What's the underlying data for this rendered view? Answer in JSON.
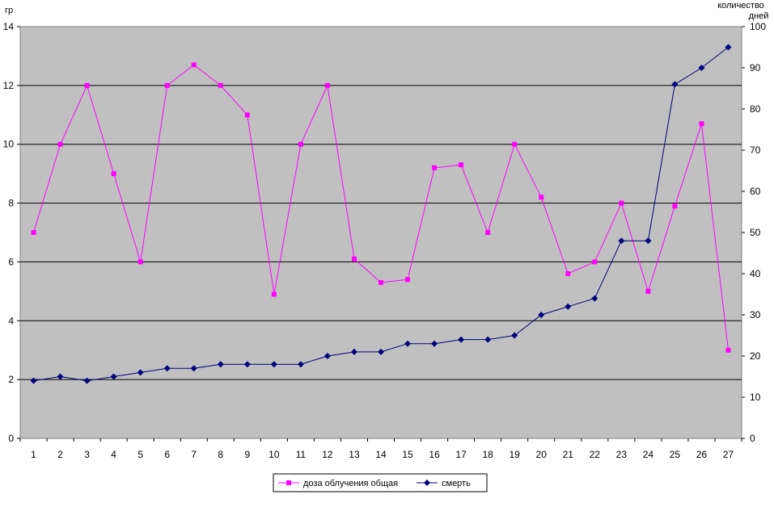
{
  "chart_data": {
    "type": "line",
    "title": "",
    "x": [
      1,
      2,
      3,
      4,
      5,
      6,
      7,
      8,
      9,
      10,
      11,
      12,
      13,
      14,
      15,
      16,
      17,
      18,
      19,
      20,
      21,
      22,
      23,
      24,
      25,
      26,
      27
    ],
    "left_axis": {
      "label": "гр",
      "ylim": [
        0,
        14
      ],
      "ticks": [
        0,
        2,
        4,
        6,
        8,
        10,
        12,
        14
      ]
    },
    "right_axis": {
      "label_line1": "количество",
      "label_line2": "дней",
      "ylim": [
        0,
        100
      ],
      "ticks": [
        0,
        10,
        20,
        30,
        40,
        50,
        60,
        70,
        80,
        90,
        100
      ]
    },
    "grid": true,
    "legend_position": "bottom",
    "series": [
      {
        "name": "доза облучения общая",
        "axis": "left",
        "color": "#ff00ff",
        "marker": "square",
        "values": [
          7,
          10,
          12,
          9,
          6,
          12,
          12.7,
          12,
          11,
          4.9,
          10,
          12,
          6.1,
          5.3,
          5.4,
          9.2,
          9.3,
          7,
          10,
          8.2,
          5.6,
          6,
          8,
          5,
          7.9,
          10.7,
          3
        ]
      },
      {
        "name": "смерть",
        "axis": "right",
        "color": "#000080",
        "marker": "diamond",
        "values": [
          14,
          15,
          14,
          15,
          16,
          17,
          17,
          18,
          18,
          18,
          18,
          20,
          21,
          21,
          23,
          23,
          24,
          24,
          25,
          30,
          32,
          34,
          48,
          48,
          86,
          90,
          95
        ]
      }
    ]
  }
}
